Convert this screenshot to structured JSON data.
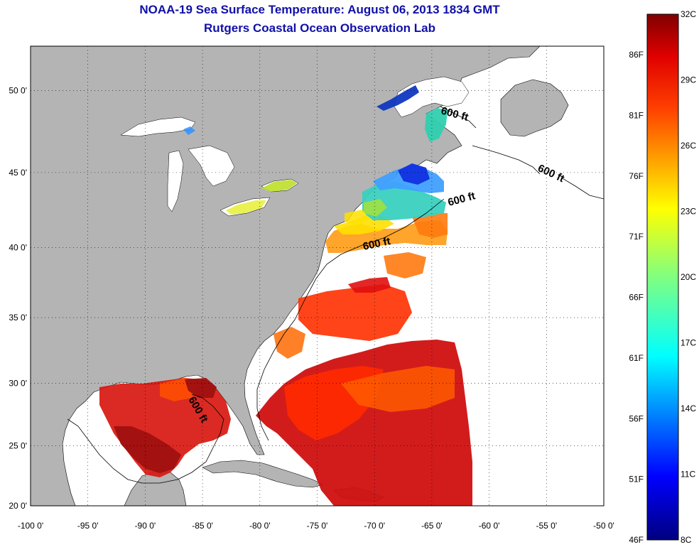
{
  "title": {
    "line1": "NOAA-19 Sea Surface Temperature:  August 06, 2013 1834 GMT",
    "line2": "Rutgers Coastal Ocean Observation Lab"
  },
  "map": {
    "lon_labels": [
      "-100 0'",
      "-95 0'",
      "-90 0'",
      "-85 0'",
      "-80 0'",
      "-75 0'",
      "-70 0'",
      "-65 0'",
      "-60 0'",
      "-55 0'",
      "-50 0'"
    ],
    "lat_labels": [
      "50 0'",
      "45 0'",
      "40 0'",
      "35 0'",
      "30 0'",
      "25 0'",
      "20 0'"
    ],
    "contour_labels": [
      "600 ft",
      "600 ft",
      "600 ft",
      "600 ft",
      "600 ft"
    ],
    "land_color": "#b4b4b4",
    "ocean_no_data_color": "#ffffff"
  },
  "colorbar": {
    "celsius_labels": [
      "32C",
      "29C",
      "26C",
      "23C",
      "20C",
      "17C",
      "14C",
      "11C",
      "8C"
    ],
    "fahrenheit_labels": [
      "86F",
      "81F",
      "76F",
      "71F",
      "66F",
      "61F",
      "56F",
      "51F",
      "46F"
    ],
    "colors": [
      "#800000",
      "#ff0000",
      "#ff8000",
      "#ffff00",
      "#80ff80",
      "#00ffff",
      "#0080ff",
      "#0000ff",
      "#000080"
    ]
  }
}
